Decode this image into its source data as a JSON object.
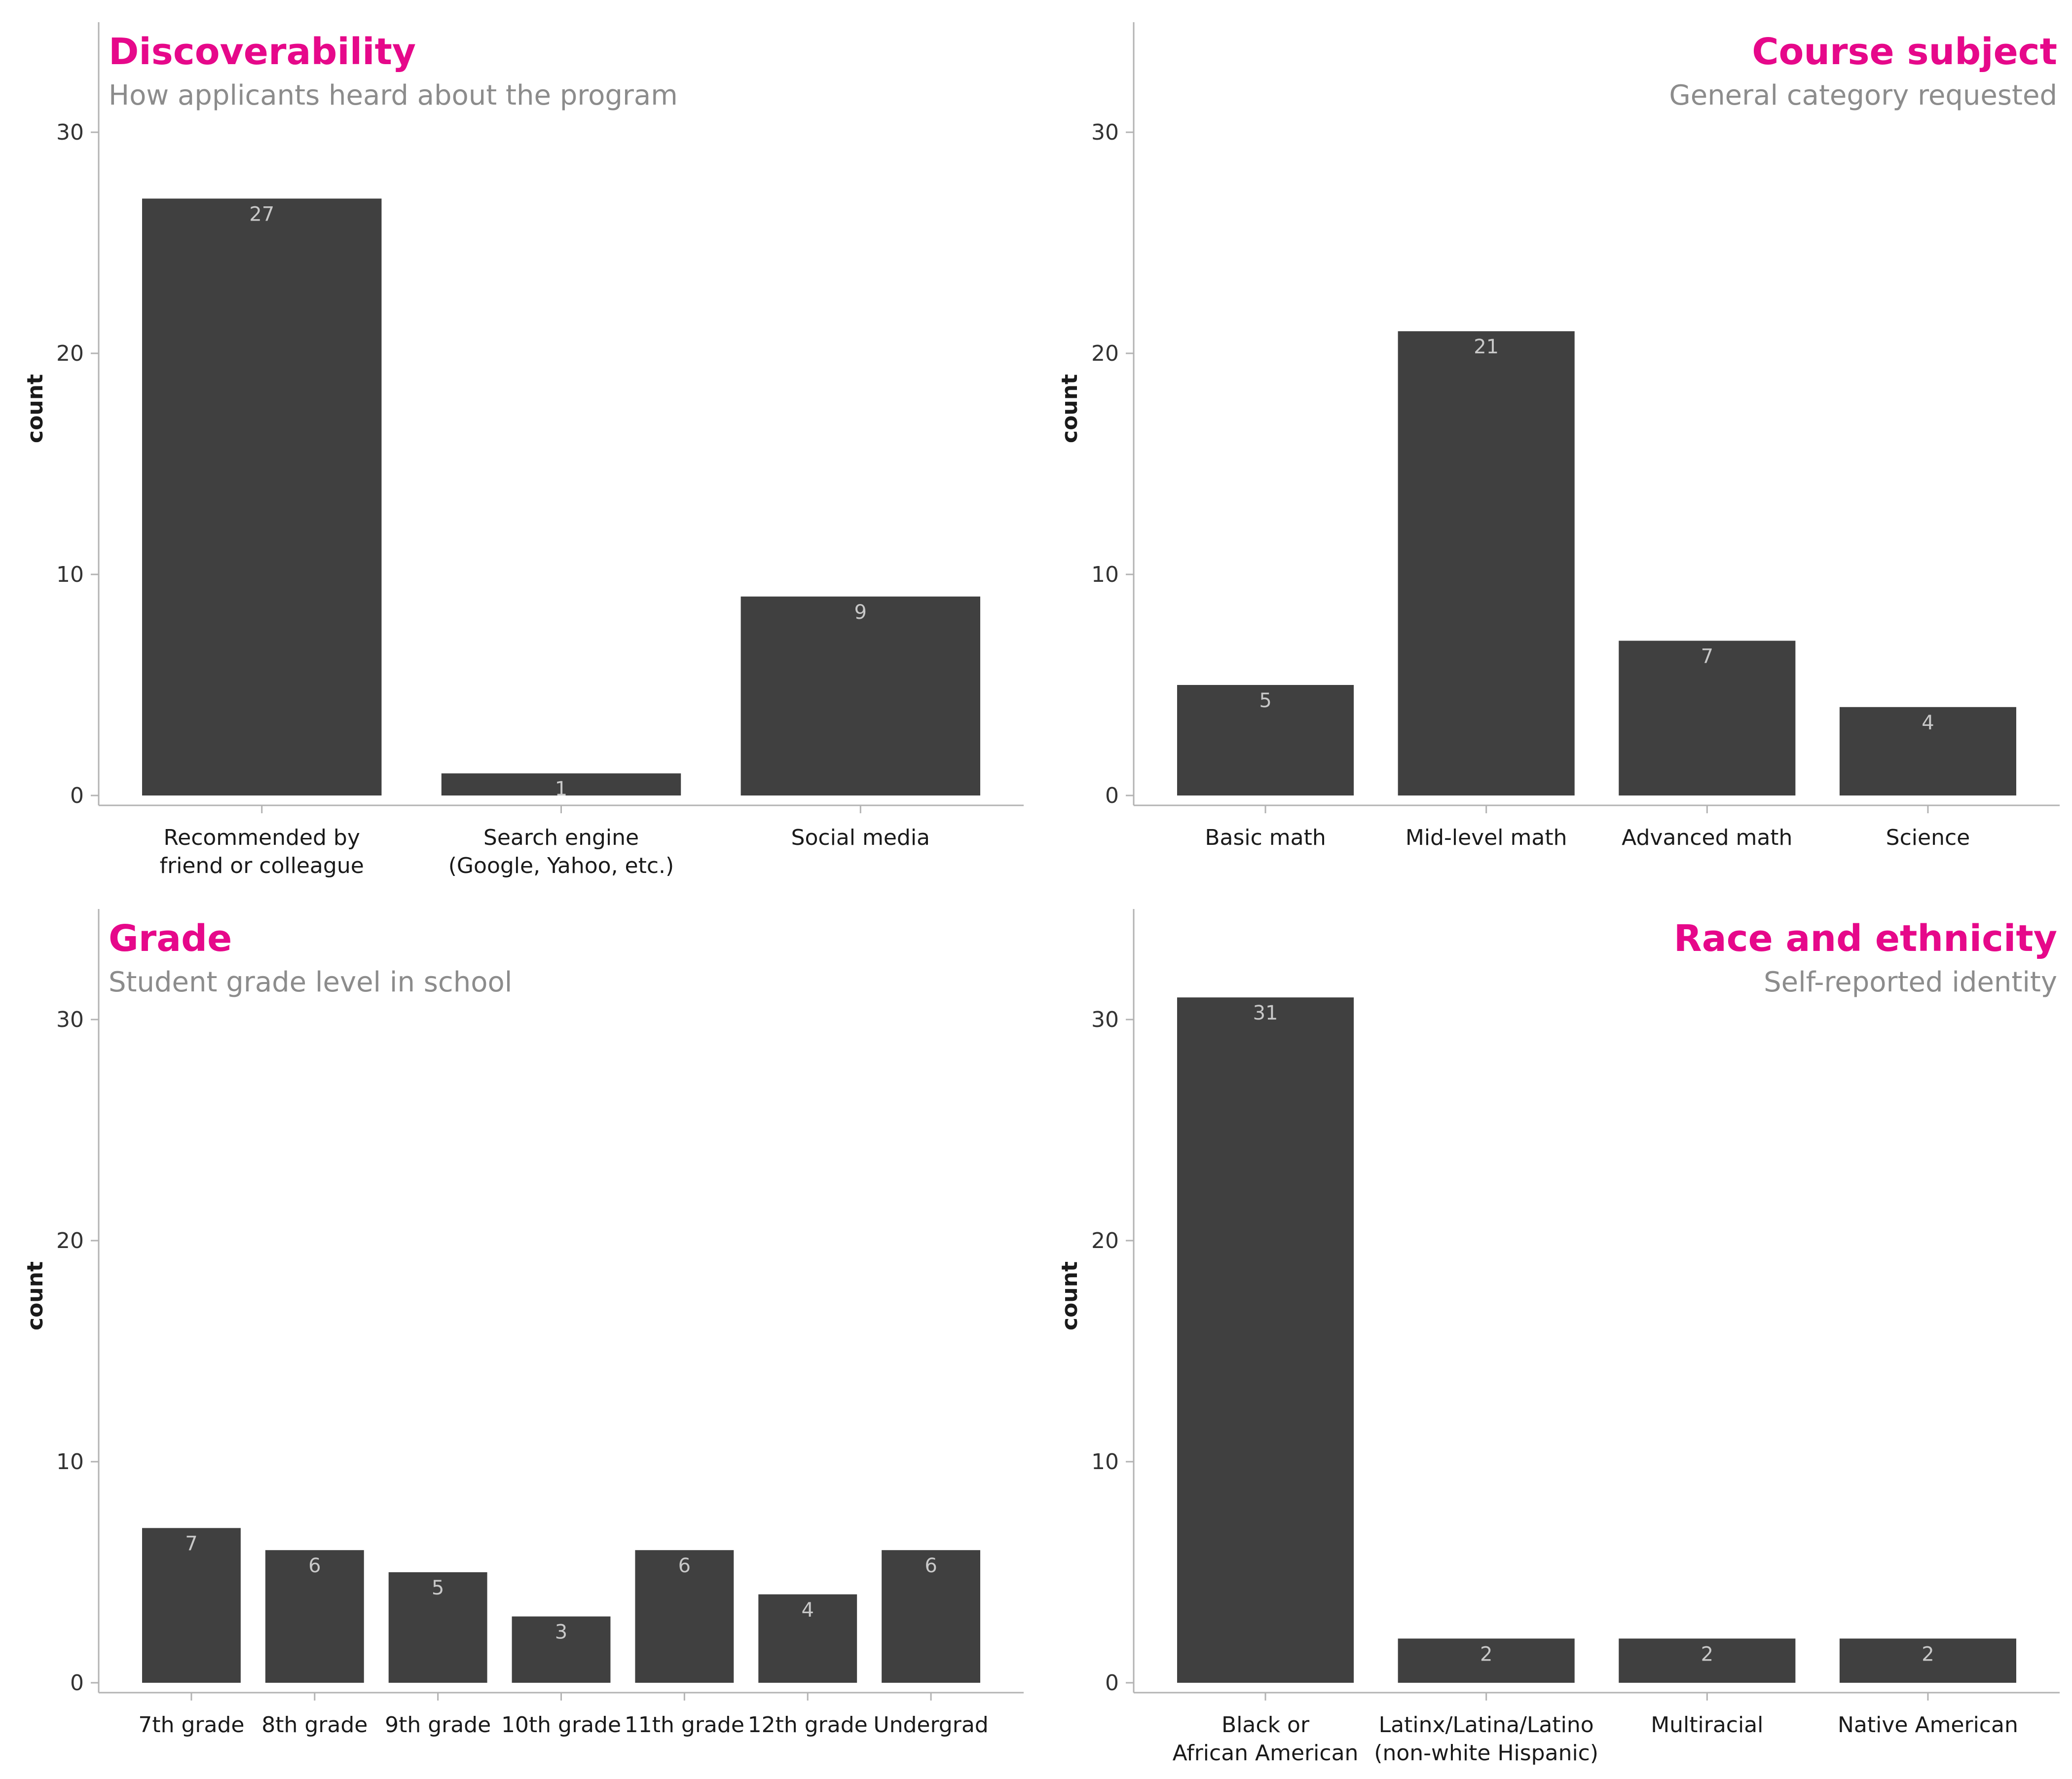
{
  "colors": {
    "title": "#e6088a",
    "subtitle": "#8c8c8c",
    "bar": "#404040",
    "bar_label": "#c8c8c8",
    "axis": "#b3b3b3",
    "text": "#1a1a1a"
  },
  "chart_data": [
    {
      "type": "bar",
      "title": "Discoverability",
      "subtitle": "How applicants heard about the program",
      "title_align": "left",
      "ylabel": "count",
      "ylim": [
        0,
        35
      ],
      "yticks": [
        0,
        10,
        20,
        30
      ],
      "grid": false,
      "categories": [
        [
          "Recommended by",
          "friend or colleague"
        ],
        [
          "Search engine",
          "(Google, Yahoo, etc.)"
        ],
        [
          "Social media"
        ]
      ],
      "values": [
        27,
        1,
        9
      ]
    },
    {
      "type": "bar",
      "title": "Course subject",
      "subtitle": "General category requested",
      "title_align": "right",
      "ylabel": "count",
      "ylim": [
        0,
        35
      ],
      "yticks": [
        0,
        10,
        20,
        30
      ],
      "grid": false,
      "categories": [
        [
          "Basic math"
        ],
        [
          "Mid-level math"
        ],
        [
          "Advanced math"
        ],
        [
          "Science"
        ]
      ],
      "values": [
        5,
        21,
        7,
        4
      ]
    },
    {
      "type": "bar",
      "title": "Grade",
      "subtitle": "Student grade level in school",
      "title_align": "left",
      "ylabel": "count",
      "ylim": [
        0,
        35
      ],
      "yticks": [
        0,
        10,
        20,
        30
      ],
      "grid": false,
      "categories": [
        [
          "7th grade"
        ],
        [
          "8th grade"
        ],
        [
          "9th grade"
        ],
        [
          "10th grade"
        ],
        [
          "11th grade"
        ],
        [
          "12th grade"
        ],
        [
          "Undergrad"
        ]
      ],
      "values": [
        7,
        6,
        5,
        3,
        6,
        4,
        6
      ]
    },
    {
      "type": "bar",
      "title": "Race and ethnicity",
      "subtitle": "Self-reported identity",
      "title_align": "right",
      "ylabel": "count",
      "ylim": [
        0,
        35
      ],
      "yticks": [
        0,
        10,
        20,
        30
      ],
      "grid": false,
      "categories": [
        [
          "Black or",
          "African American"
        ],
        [
          "Latinx/Latina/Latino",
          "(non-white Hispanic)"
        ],
        [
          "Multiracial"
        ],
        [
          "Native American"
        ]
      ],
      "values": [
        31,
        2,
        2,
        2
      ]
    }
  ]
}
